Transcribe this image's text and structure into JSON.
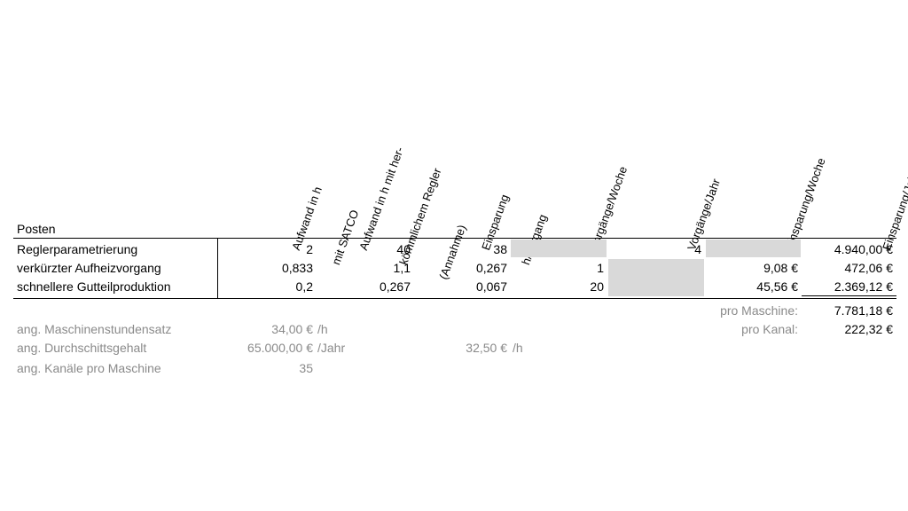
{
  "header": {
    "posten": "Posten",
    "cols": [
      {
        "lines": [
          "Aufwand in h",
          "mit SATCO"
        ]
      },
      {
        "lines": [
          "Aufwand in h mit her-",
          "kömmlichem Regler",
          "(Annahme)"
        ]
      },
      {
        "lines": [
          "Einsparung",
          "h/Vorgang"
        ]
      },
      {
        "lines": [
          "Vorgänge/Woche"
        ]
      },
      {
        "lines": [
          "Vorgänge/Jahr"
        ]
      },
      {
        "lines": [
          "Einsparung/Woche"
        ]
      },
      {
        "lines": [
          "Einsparung/Jahr"
        ]
      }
    ]
  },
  "rows": [
    {
      "label": "Reglerparametrierung",
      "aufwand_satco": "2",
      "aufwand_herk": "40",
      "einsparung_h": "38",
      "vorgaenge_woche": "",
      "vorgaenge_jahr": "4",
      "einsparung_woche": "",
      "einsparung_jahr": "4.940,00 €"
    },
    {
      "label": "verkürzter Aufheizvorgang",
      "aufwand_satco": "0,833",
      "aufwand_herk": "1,1",
      "einsparung_h": "0,267",
      "vorgaenge_woche": "1",
      "vorgaenge_jahr": "",
      "einsparung_woche": "9,08 €",
      "einsparung_jahr": "472,06 €"
    },
    {
      "label": "schnellere Gutteilproduktion",
      "aufwand_satco": "0,2",
      "aufwand_herk": "0,267",
      "einsparung_h": "0,067",
      "vorgaenge_woche": "20",
      "vorgaenge_jahr": "",
      "einsparung_woche": "45,56 €",
      "einsparung_jahr": "2.369,12 €"
    }
  ],
  "totals": {
    "pro_maschine_label": "pro Maschine:",
    "pro_maschine_value": "7.781,18 €",
    "pro_kanal_label": "pro Kanal:",
    "pro_kanal_value": "222,32 €"
  },
  "assumptions": [
    {
      "label": "ang. Maschinenstundensatz",
      "value": "34,00 €",
      "unit": "/h"
    },
    {
      "label": "ang. Durchschittsgehalt",
      "value": "65.000,00 €",
      "unit": "/Jahr",
      "value2": "32,50 €",
      "unit2": "/h"
    },
    {
      "label": "ang. Kanäle pro Maschine",
      "value": "35"
    }
  ],
  "colors": {
    "shade": "#d9d9d9",
    "grey_text": "#8a8a8a"
  }
}
